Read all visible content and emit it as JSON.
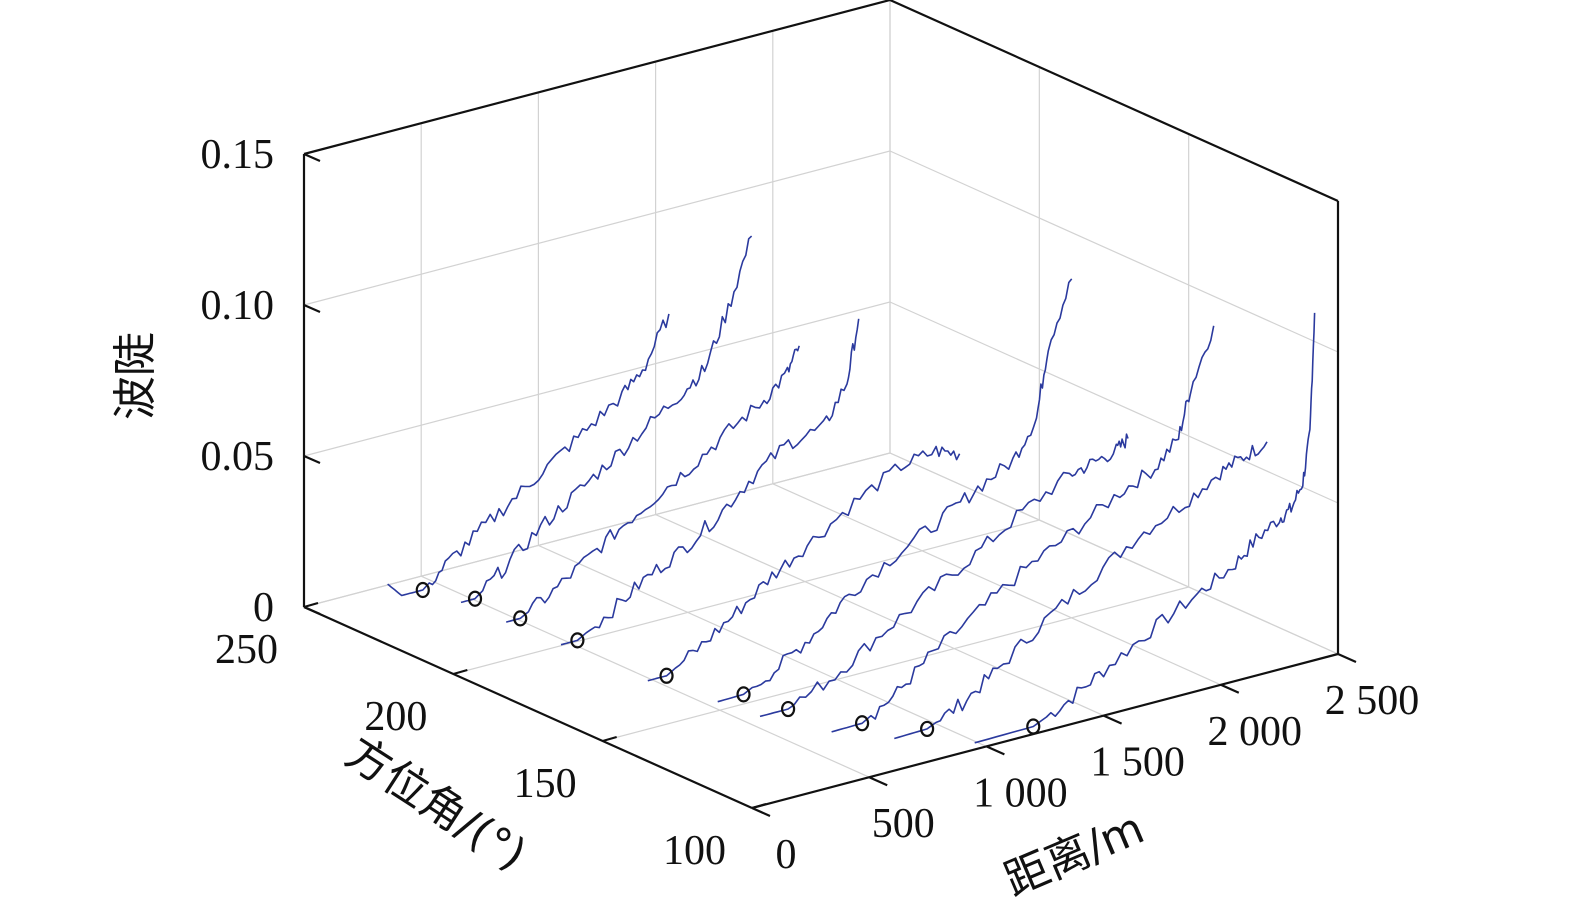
{
  "chart_data": {
    "type": "line",
    "projection": "3d",
    "xlabel": "距离/m",
    "ylabel": "方位角/(°)",
    "zlabel": "波陡",
    "xlim": [
      0,
      2500
    ],
    "ylim": [
      100,
      250
    ],
    "zlim": [
      0,
      0.15
    ],
    "x_ticks": [
      0,
      500,
      1000,
      1500,
      2000,
      2500
    ],
    "x_tick_labels": [
      "0",
      "500",
      "1 000",
      "1 500",
      "2 000",
      "2 500"
    ],
    "y_ticks": [
      100,
      150,
      200,
      250
    ],
    "y_tick_labels": [
      "100",
      "150",
      "200",
      "250"
    ],
    "z_ticks": [
      0,
      0.05,
      0.1,
      0.15
    ],
    "z_tick_labels": [
      "0",
      "0.05",
      "0.10",
      "0.15"
    ],
    "grid": true,
    "colors": {
      "line": "#2b3a9e",
      "marker": "#111111",
      "axis": "#111111",
      "grid": "#d2d2d2"
    },
    "series": [
      {
        "azimuth": 100,
        "x": [
          950,
          1200,
          1350,
          1500,
          1700,
          1900,
          2050,
          2150,
          2250,
          2300,
          2350,
          2380,
          2400
        ],
        "z": [
          0.0022,
          0.0025,
          0.008,
          0.015,
          0.024,
          0.032,
          0.038,
          0.045,
          0.05,
          0.052,
          0.06,
          0.075,
          0.115
        ],
        "marker": {
          "x": 1200,
          "z": 0.0025
        }
      },
      {
        "azimuth": 112,
        "x": [
          760,
          900,
          1050,
          1200,
          1400,
          1600,
          1800,
          2000,
          2150,
          2250,
          2350
        ],
        "z": [
          0.0022,
          0.0025,
          0.008,
          0.016,
          0.028,
          0.038,
          0.048,
          0.055,
          0.062,
          0.065,
          0.068
        ],
        "marker": {
          "x": 900,
          "z": 0.0025
        }
      },
      {
        "azimuth": 122,
        "x": [
          620,
          750,
          900,
          1050,
          1250,
          1450,
          1650,
          1850,
          2000,
          2100,
          2150,
          2250
        ],
        "z": [
          0.0028,
          0.003,
          0.01,
          0.02,
          0.03,
          0.04,
          0.048,
          0.057,
          0.062,
          0.07,
          0.085,
          0.104
        ],
        "marker": {
          "x": 750,
          "z": 0.003
        }
      },
      {
        "azimuth": 135,
        "x": [
          480,
          600,
          800,
          1000,
          1200,
          1400,
          1600,
          1800,
          1900,
          2000,
          2050
        ],
        "z": [
          0.005,
          0.005,
          0.012,
          0.022,
          0.031,
          0.04,
          0.05,
          0.058,
          0.06,
          0.062,
          0.065
        ],
        "marker": {
          "x": 600,
          "z": 0.005
        }
      },
      {
        "azimuth": 146,
        "x": [
          440,
          550,
          700,
          850,
          1000,
          1200,
          1400,
          1550,
          1700,
          1800,
          1850,
          1950
        ],
        "z": [
          0.0058,
          0.006,
          0.012,
          0.02,
          0.03,
          0.039,
          0.047,
          0.054,
          0.06,
          0.072,
          0.095,
          0.115
        ],
        "marker": {
          "x": 550,
          "z": 0.006
        }
      },
      {
        "azimuth": 160,
        "x": [
          320,
          400,
          550,
          700,
          850,
          1000,
          1200,
          1400,
          1550,
          1650
        ],
        "z": [
          0.009,
          0.009,
          0.016,
          0.024,
          0.033,
          0.04,
          0.05,
          0.058,
          0.06,
          0.057
        ],
        "marker": {
          "x": 400,
          "z": 0.009
        }
      },
      {
        "azimuth": 182,
        "x": [
          230,
          300,
          450,
          600,
          750,
          900,
          1050,
          1200,
          1350,
          1450,
          1500
        ],
        "z": [
          0.013,
          0.013,
          0.02,
          0.028,
          0.034,
          0.042,
          0.052,
          0.06,
          0.062,
          0.075,
          0.095
        ],
        "marker": {
          "x": 300,
          "z": 0.013
        }
      },
      {
        "azimuth": 198,
        "x": [
          200,
          260,
          400,
          550,
          700,
          850,
          1000,
          1150,
          1300,
          1400,
          1450
        ],
        "z": [
          0.014,
          0.014,
          0.02,
          0.028,
          0.036,
          0.043,
          0.05,
          0.058,
          0.065,
          0.072,
          0.08
        ],
        "marker": {
          "x": 260,
          "z": 0.014
        }
      },
      {
        "azimuth": 210,
        "x": [
          160,
          220,
          350,
          500,
          650,
          800,
          950,
          1100,
          1200,
          1300,
          1400
        ],
        "z": [
          0.016,
          0.016,
          0.024,
          0.034,
          0.042,
          0.05,
          0.058,
          0.066,
          0.072,
          0.09,
          0.112
        ],
        "marker": {
          "x": 220,
          "z": 0.016
        }
      },
      {
        "azimuth": 222,
        "x": [
          0,
          60,
          150,
          260,
          400,
          550,
          700,
          850,
          1000,
          1100,
          1200
        ],
        "z": [
          0.02,
          0.015,
          0.015,
          0.022,
          0.03,
          0.038,
          0.046,
          0.054,
          0.062,
          0.07,
          0.085
        ],
        "marker": {
          "x": 150,
          "z": 0.015
        }
      }
    ]
  }
}
